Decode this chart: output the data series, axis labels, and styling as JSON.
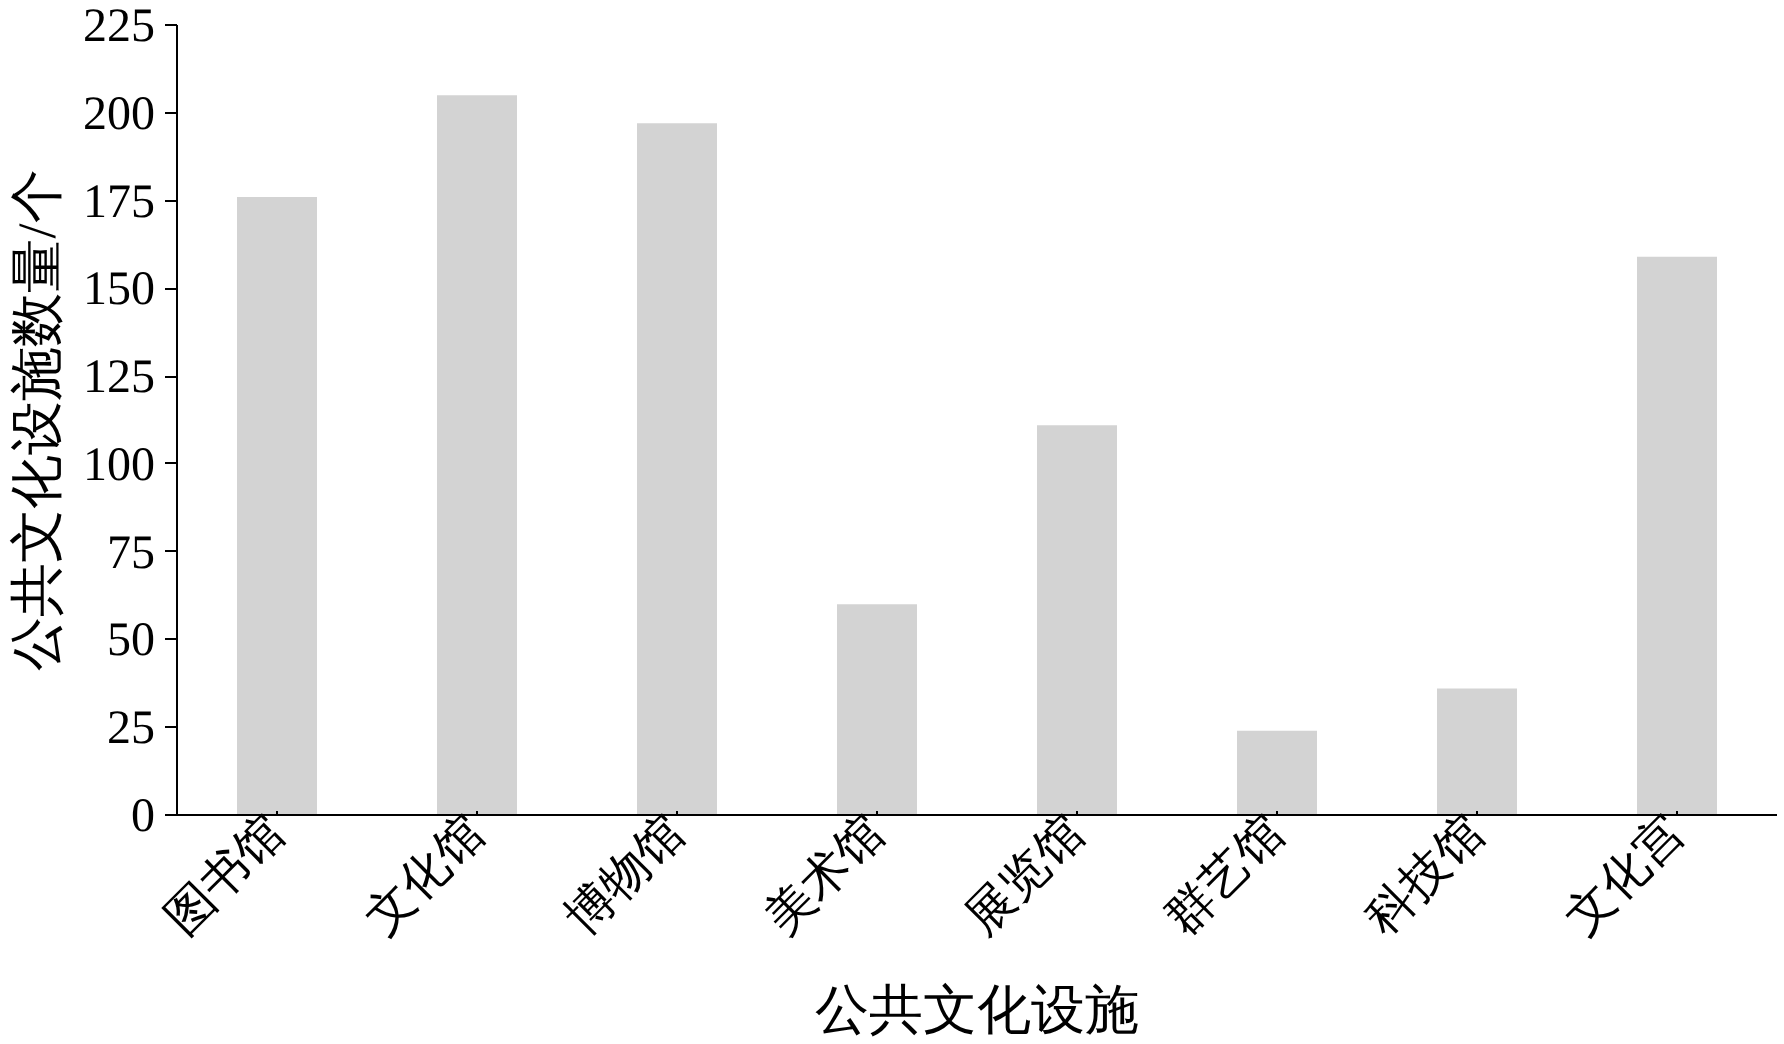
{
  "chart_data": {
    "type": "bar",
    "xlabel": "公共文化设施",
    "ylabel": "公共文化设施数量/个",
    "categories": [
      "图书馆",
      "文化馆",
      "博物馆",
      "美术馆",
      "展览馆",
      "群艺馆",
      "科技馆",
      "文化宫"
    ],
    "values": [
      176,
      205,
      197,
      60,
      111,
      24,
      36,
      159
    ],
    "color": "#d3d3d3",
    "ylim": [
      0,
      225
    ],
    "yticks": [
      0,
      25,
      50,
      75,
      100,
      125,
      150,
      175,
      200,
      225
    ],
    "grid": false
  }
}
